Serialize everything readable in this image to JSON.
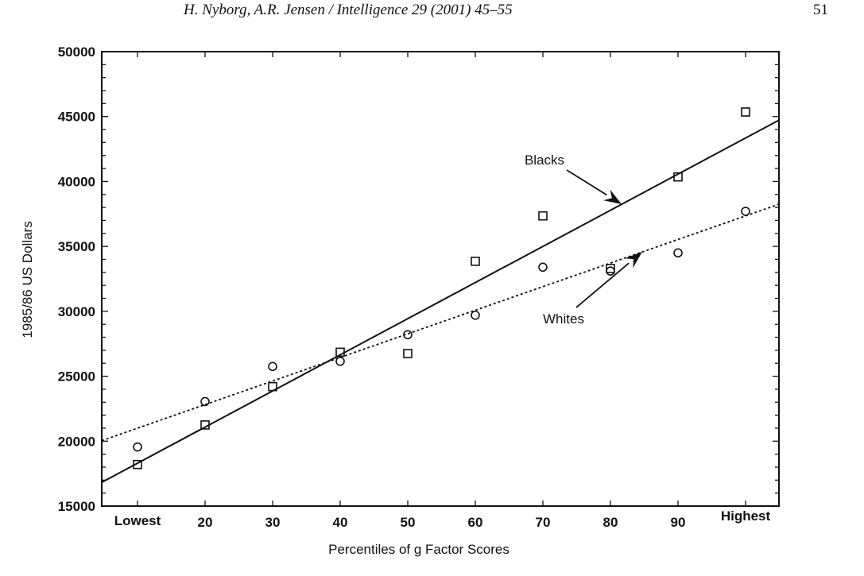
{
  "header": {
    "running_title": "H. Nyborg, A.R. Jensen / Intelligence 29 (2001) 45–55",
    "page_number": "51"
  },
  "chart_data": {
    "type": "scatter",
    "title": "",
    "xlabel": "Percentiles of g Factor Scores",
    "ylabel": "1985/86 US Dollars",
    "categories": [
      "Lowest",
      "20",
      "30",
      "40",
      "50",
      "60",
      "70",
      "80",
      "90",
      "Highest"
    ],
    "ylim": [
      15000,
      50000
    ],
    "yticks": [
      "15000",
      "20000",
      "25000",
      "30000",
      "35000",
      "40000",
      "45000",
      "50000"
    ],
    "grid": false,
    "series": [
      {
        "name": "Blacks",
        "marker": "square",
        "line": "solid",
        "values": [
          18200,
          21250,
          24200,
          26850,
          26750,
          33850,
          37350,
          33300,
          40350,
          45350
        ],
        "fit": {
          "Lowest": 18300,
          "Highest": 43350
        }
      },
      {
        "name": "Whites",
        "marker": "circle",
        "line": "dotted",
        "values": [
          19550,
          23050,
          25750,
          26150,
          28200,
          29700,
          33400,
          33100,
          34500,
          37700
        ],
        "fit": {
          "Lowest": 21000,
          "Highest": 37350
        }
      }
    ],
    "annotations": [
      {
        "text": "Blacks"
      },
      {
        "text": "Whites"
      }
    ]
  }
}
